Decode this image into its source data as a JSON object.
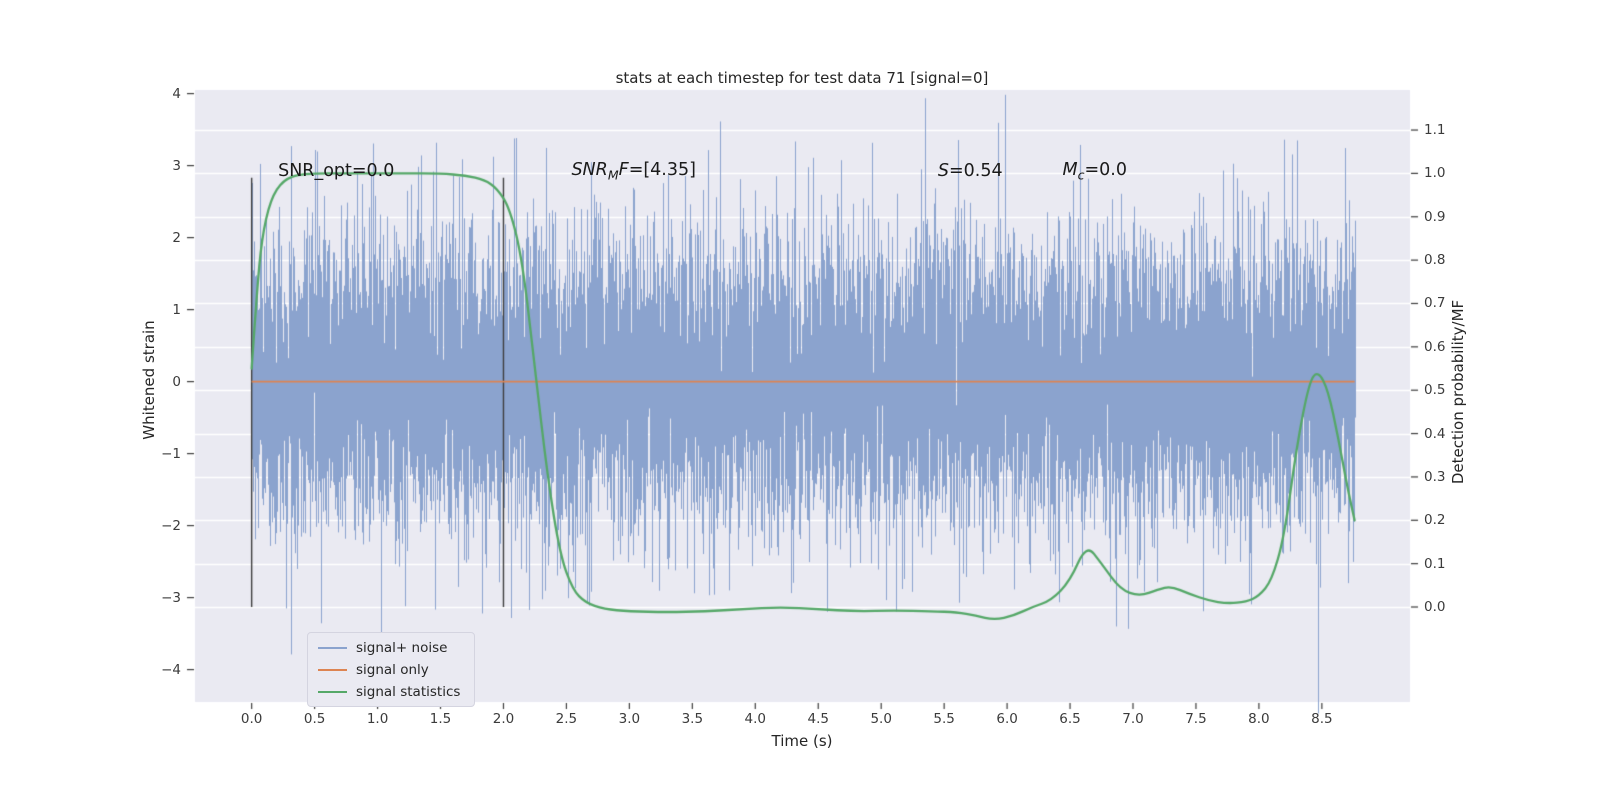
{
  "chart_data": {
    "type": "line",
    "title": "stats at each timestep for test data 71 [signal=0]",
    "xlabel": "Time (s)",
    "ylabel_left": "Whitened strain",
    "ylabel_right": "Detection probability/MF",
    "plot_bg": "#eaeaf2",
    "grid_color": "#ffffff",
    "grid": "horizontal (right-axis ticks)",
    "legend_position": "lower-left",
    "axes": {
      "x_range": [
        -0.45,
        9.2
      ],
      "y_left_range": [
        -4.45,
        4.05
      ],
      "y_right_range": [
        -0.221,
        1.192
      ]
    },
    "x_ticks": {
      "values": [
        0,
        0.5,
        1,
        1.5,
        2,
        2.5,
        3,
        3.5,
        4,
        4.5,
        5,
        5.5,
        6,
        6.5,
        7,
        7.5,
        8,
        8.5
      ],
      "labels": [
        "0.0",
        "0.5",
        "1.0",
        "1.5",
        "2.0",
        "2.5",
        "3.0",
        "3.5",
        "4.0",
        "4.5",
        "5.0",
        "5.5",
        "6.0",
        "6.5",
        "7.0",
        "7.5",
        "8.0",
        "8.5"
      ]
    },
    "y_left_ticks": {
      "values": [
        4,
        3,
        2,
        1,
        0,
        -1,
        -2,
        -3,
        -4
      ],
      "labels": [
        "4",
        "3",
        "2",
        "1",
        "0",
        "−1",
        "−2",
        "−3",
        "−4"
      ]
    },
    "y_right_ticks": {
      "values": [
        1.1,
        1.0,
        0.9,
        0.8,
        0.7,
        0.6,
        0.5,
        0.4,
        0.3,
        0.2,
        0.1,
        0.0
      ],
      "labels": [
        "1.1",
        "1.0",
        "0.9",
        "0.8",
        "0.7",
        "0.6",
        "0.5",
        "0.4",
        "0.3",
        "0.2",
        "0.1",
        "0.0"
      ]
    },
    "series": [
      {
        "name": "signal+ noise",
        "kind": "noise",
        "axis": "left",
        "color": "#8ba3ce",
        "t_start": 0.0,
        "t_end": 8.76,
        "mean": 0.0,
        "std": 1.0,
        "approx_peak": 3.6
      },
      {
        "name": "signal only",
        "kind": "flat-line",
        "axis": "left",
        "color": "#dd8452",
        "value": 0.0,
        "t_start": 0.0,
        "t_end": 8.76
      },
      {
        "name": "signal statistics",
        "kind": "curve",
        "axis": "right",
        "color": "#55a868",
        "points": [
          [
            0.0,
            0.55
          ],
          [
            0.04,
            0.72
          ],
          [
            0.08,
            0.85
          ],
          [
            0.15,
            0.94
          ],
          [
            0.25,
            0.985
          ],
          [
            0.4,
            1.0
          ],
          [
            0.8,
            1.0
          ],
          [
            1.2,
            1.0
          ],
          [
            1.5,
            1.0
          ],
          [
            1.7,
            0.995
          ],
          [
            1.85,
            0.985
          ],
          [
            1.95,
            0.965
          ],
          [
            2.05,
            0.92
          ],
          [
            2.15,
            0.8
          ],
          [
            2.25,
            0.55
          ],
          [
            2.35,
            0.3
          ],
          [
            2.45,
            0.12
          ],
          [
            2.55,
            0.04
          ],
          [
            2.65,
            0.01
          ],
          [
            2.8,
            -0.005
          ],
          [
            3.0,
            -0.01
          ],
          [
            3.3,
            -0.012
          ],
          [
            3.6,
            -0.01
          ],
          [
            3.9,
            -0.005
          ],
          [
            4.2,
            0.0
          ],
          [
            4.5,
            -0.005
          ],
          [
            4.8,
            -0.01
          ],
          [
            5.1,
            -0.008
          ],
          [
            5.4,
            -0.01
          ],
          [
            5.6,
            -0.012
          ],
          [
            5.75,
            -0.02
          ],
          [
            5.9,
            -0.03
          ],
          [
            6.05,
            -0.02
          ],
          [
            6.2,
            0.0
          ],
          [
            6.35,
            0.015
          ],
          [
            6.5,
            0.06
          ],
          [
            6.63,
            0.145
          ],
          [
            6.75,
            0.1
          ],
          [
            6.9,
            0.04
          ],
          [
            7.05,
            0.025
          ],
          [
            7.2,
            0.04
          ],
          [
            7.3,
            0.048
          ],
          [
            7.45,
            0.03
          ],
          [
            7.6,
            0.015
          ],
          [
            7.75,
            0.008
          ],
          [
            7.9,
            0.012
          ],
          [
            8.0,
            0.025
          ],
          [
            8.1,
            0.06
          ],
          [
            8.2,
            0.16
          ],
          [
            8.3,
            0.37
          ],
          [
            8.4,
            0.52
          ],
          [
            8.47,
            0.545
          ],
          [
            8.55,
            0.5
          ],
          [
            8.63,
            0.39
          ],
          [
            8.7,
            0.28
          ],
          [
            8.76,
            0.2
          ]
        ]
      }
    ],
    "vlines": {
      "times": [
        0.0,
        2.0
      ],
      "color": "#3f3f3f",
      "y_right_from": 0.0,
      "y_right_to": 0.99
    },
    "annotations": [
      {
        "id": "snr-opt",
        "x_time": 0.21,
        "y_left": 2.92,
        "parts": [
          {
            "text": "SNR_opt=0.0",
            "style": "normal"
          }
        ]
      },
      {
        "id": "snr-mf",
        "x_time": 2.54,
        "y_left": 2.92,
        "parts": [
          {
            "text": "SNR",
            "style": "italic"
          },
          {
            "text": "M",
            "style": "sub"
          },
          {
            "text": "F",
            "style": "italic"
          },
          {
            "text": "=[4.35]",
            "style": "normal"
          }
        ]
      },
      {
        "id": "s-stat",
        "x_time": 5.45,
        "y_left": 2.92,
        "parts": [
          {
            "text": "S",
            "style": "italic"
          },
          {
            "text": "=0.54",
            "style": "normal"
          }
        ]
      },
      {
        "id": "m-chirp",
        "x_time": 6.44,
        "y_left": 2.92,
        "parts": [
          {
            "text": "M",
            "style": "italic"
          },
          {
            "text": "c",
            "style": "sub"
          },
          {
            "text": "=0.0",
            "style": "normal"
          }
        ]
      }
    ],
    "legend": {
      "items": [
        {
          "label": "signal+ noise",
          "color": "#8ba3ce"
        },
        {
          "label": "signal only",
          "color": "#dd8452"
        },
        {
          "label": "signal statistics",
          "color": "#55a868"
        }
      ]
    }
  }
}
